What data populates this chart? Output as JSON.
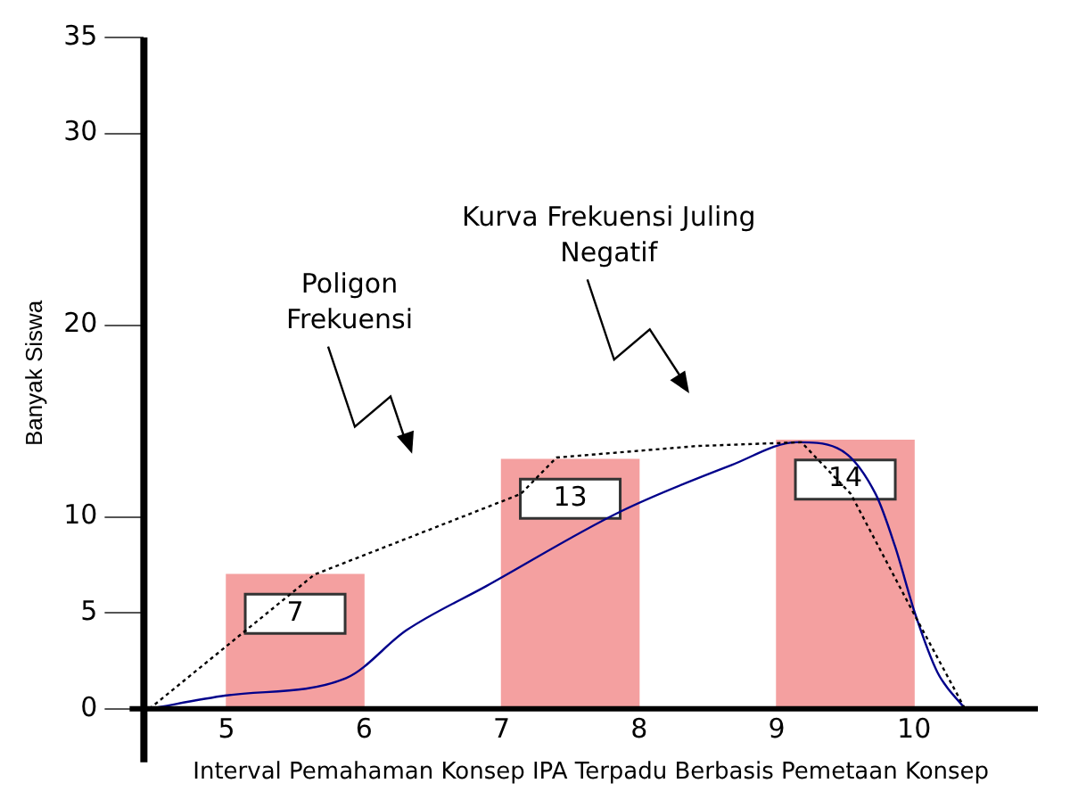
{
  "chart_data": {
    "type": "histogram",
    "xlabel": "Interval Pemahaman Konsep IPA Terpadu Berbasis Pemetaan Konsep",
    "ylabel": "Banyak Siswa",
    "bins": [
      5,
      6,
      7,
      8,
      9,
      10
    ],
    "xlim": [
      4.4,
      10.9
    ],
    "xticks": [
      5,
      6,
      7,
      8,
      9,
      10
    ],
    "ylim": [
      0,
      35
    ],
    "yticks": [
      0,
      5,
      10,
      20,
      30,
      35
    ],
    "grid": false,
    "legend": false,
    "color": "#f4a0a0",
    "values": [
      7,
      null,
      13,
      null,
      14
    ],
    "value_labels": [
      "7",
      null,
      "13",
      null,
      "14"
    ],
    "series": [
      {
        "type": "line",
        "color": "#000000",
        "line_style": "dotted",
        "x": [
          4.44,
          5.64,
          7.14,
          7.4,
          8.42,
          9.18,
          9.54,
          10.01,
          10.37
        ],
        "values": [
          0,
          7,
          11.2,
          13.1,
          13.7,
          13.9,
          11.2,
          4.8,
          0
        ]
      },
      {
        "type": "line",
        "color": "#00008b",
        "line_style": "solid",
        "x": [
          4.44,
          5,
          5.87,
          6.31,
          6.89,
          7.87,
          8.67,
          9.15,
          9.44,
          9.72,
          9.86,
          10.01,
          10.17,
          10.37
        ],
        "values": [
          0,
          0.7,
          1.6,
          4.1,
          6.4,
          10.3,
          12.7,
          13.9,
          13.6,
          11.2,
          8.5,
          4.9,
          1.9,
          0
        ]
      }
    ],
    "annotations": [
      "Poligon\nFrekuensi",
      "Kurva Frekuensi Juling\nNegatif"
    ]
  }
}
